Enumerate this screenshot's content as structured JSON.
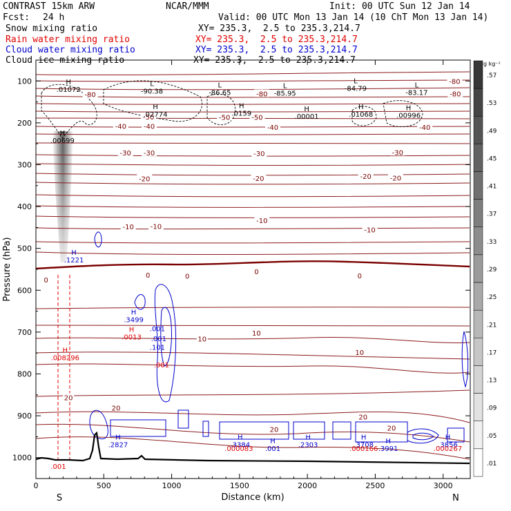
{
  "header": {
    "model": "CONTRAST 15km ARW",
    "org": "NCAR/MMM",
    "init": "Init: 00 UTC Sun 12 Jan 14",
    "fcst_label": "Fcst:",
    "fcst_value": "24 h",
    "valid": "Valid: 00 UTC Mon 13 Jan 14 (10 ChT Mon 13 Jan 14)"
  },
  "fields": [
    {
      "name": "Snow mixing ratio",
      "xy": "XY= 235.3,  2.5 to 235.3,214.7",
      "color": "#000000"
    },
    {
      "name": "Rain water mixing ratio",
      "xy": "XY= 235.3,  2.5 to 235.3,214.7",
      "color": "#e00000"
    },
    {
      "name": "Cloud water mixing ratio",
      "xy": "XY= 235.3,  2.5 to 235.3,214.7",
      "color": "#0000cc"
    },
    {
      "name": "Cloud ice mixing ratio",
      "xy": "XY= 235.3,  2.5 to 235.3,214.7",
      "color": "#000000"
    }
  ],
  "chart_data": {
    "type": "cross-section",
    "xlabel": "Distance (km)",
    "ylabel": "Pressure (hPa)",
    "xlim": [
      0,
      3200
    ],
    "ylim": [
      1050,
      50
    ],
    "x_ticks": [
      "0",
      "500",
      "1000",
      "1500",
      "2000",
      "2500",
      "3000"
    ],
    "x_tick_values": [
      0,
      500,
      1000,
      1500,
      2000,
      2500,
      3000
    ],
    "y_ticks": [
      "100",
      "200",
      "300",
      "400",
      "500",
      "600",
      "700",
      "800",
      "900",
      "1000"
    ],
    "y_tick_values": [
      100,
      200,
      300,
      400,
      500,
      600,
      700,
      800,
      900,
      1000
    ],
    "endpoints": {
      "left": "S",
      "right": "N"
    },
    "colorbar": {
      "unit": "g kg⁻¹",
      "labels": [
        ".57",
        ".53",
        ".49",
        ".45",
        ".41",
        ".37",
        ".33",
        ".29",
        ".25",
        ".21",
        ".17",
        ".13",
        ".09",
        ".05",
        ".01"
      ],
      "values": [
        0.57,
        0.53,
        0.49,
        0.45,
        0.41,
        0.37,
        0.33,
        0.29,
        0.25,
        0.21,
        0.17,
        0.13,
        0.09,
        0.05,
        0.01
      ]
    },
    "temperature_labels": [
      {
        "text": "-80",
        "x": 400,
        "p": 132
      },
      {
        "text": "-80",
        "x": 1665,
        "p": 130
      },
      {
        "text": "-80",
        "x": 3085,
        "p": 100
      },
      {
        "text": "-80",
        "x": 3090,
        "p": 130
      },
      {
        "text": "-50",
        "x": 830,
        "p": 185
      },
      {
        "text": "-50",
        "x": 1390,
        "p": 186
      },
      {
        "text": "-50",
        "x": 1630,
        "p": 186
      },
      {
        "text": "-40",
        "x": 625,
        "p": 208
      },
      {
        "text": "-40",
        "x": 835,
        "p": 208
      },
      {
        "text": "-40",
        "x": 1745,
        "p": 210
      },
      {
        "text": "-40",
        "x": 2865,
        "p": 210
      },
      {
        "text": "-30",
        "x": 660,
        "p": 271
      },
      {
        "text": "-30",
        "x": 835,
        "p": 271
      },
      {
        "text": "-30",
        "x": 1645,
        "p": 273
      },
      {
        "text": "-30",
        "x": 2665,
        "p": 270
      },
      {
        "text": "-20",
        "x": 800,
        "p": 333
      },
      {
        "text": "-20",
        "x": 1640,
        "p": 332
      },
      {
        "text": "-20",
        "x": 2430,
        "p": 327
      },
      {
        "text": "-20",
        "x": 2650,
        "p": 331
      },
      {
        "text": "-10",
        "x": 680,
        "p": 448
      },
      {
        "text": "-10",
        "x": 885,
        "p": 447
      },
      {
        "text": "-10",
        "x": 1665,
        "p": 433
      },
      {
        "text": "-10",
        "x": 2460,
        "p": 455
      },
      {
        "text": "0",
        "x": 75,
        "p": 575
      },
      {
        "text": "0",
        "x": 825,
        "p": 563
      },
      {
        "text": "0",
        "x": 1115,
        "p": 566
      },
      {
        "text": "0",
        "x": 1625,
        "p": 555
      },
      {
        "text": "0",
        "x": 2385,
        "p": 565
      },
      {
        "text": "10",
        "x": 1225,
        "p": 716
      },
      {
        "text": "10",
        "x": 1625,
        "p": 702
      },
      {
        "text": "10",
        "x": 2385,
        "p": 748
      },
      {
        "text": "20",
        "x": 240,
        "p": 856
      },
      {
        "text": "20",
        "x": 590,
        "p": 881
      },
      {
        "text": "20",
        "x": 1755,
        "p": 932
      },
      {
        "text": "20",
        "x": 2410,
        "p": 902
      },
      {
        "text": "20",
        "x": 2620,
        "p": 929
      }
    ],
    "extrema": [
      {
        "kind": "H",
        "value": ".01072",
        "x": 240,
        "p": 108,
        "color": "#000000"
      },
      {
        "kind": "L",
        "value": "-90.38",
        "x": 855,
        "p": 112,
        "color": "#000000"
      },
      {
        "kind": "L",
        "value": "-86.65",
        "x": 1355,
        "p": 115,
        "color": "#000000"
      },
      {
        "kind": "L",
        "value": "-85.95",
        "x": 1835,
        "p": 117,
        "color": "#000000"
      },
      {
        "kind": "L",
        "value": "-84.79",
        "x": 2355,
        "p": 105,
        "color": "#000000"
      },
      {
        "kind": "L",
        "value": "-83.17",
        "x": 2805,
        "p": 115,
        "color": "#000000"
      },
      {
        "kind": "H",
        "value": ".02774",
        "x": 880,
        "p": 167,
        "color": "#000000"
      },
      {
        "kind": "H",
        "value": ".0159",
        "x": 1515,
        "p": 165,
        "color": "#000000"
      },
      {
        "kind": "H",
        "value": ".00001",
        "x": 1995,
        "p": 172,
        "color": "#000000"
      },
      {
        "kind": "H",
        "value": ".01068",
        "x": 2395,
        "p": 167,
        "color": "#000000"
      },
      {
        "kind": "H",
        "value": ".00996",
        "x": 2745,
        "p": 170,
        "color": "#000000"
      },
      {
        "kind": "H",
        "value": ".00699",
        "x": 195,
        "p": 230,
        "color": "#000000"
      },
      {
        "kind": "H",
        "value": ".1221",
        "x": 280,
        "p": 515,
        "color": "#0000cc"
      },
      {
        "kind": "H",
        "value": ".3499",
        "x": 720,
        "p": 658,
        "color": "#0000cc"
      },
      {
        "kind": "H",
        "value": ".0013",
        "x": 705,
        "p": 699,
        "color": "#e00000"
      },
      {
        "kind": "H",
        "value": ".008296",
        "x": 215,
        "p": 749,
        "color": "#e00000"
      },
      {
        "kind": "H",
        "value": ".2827",
        "x": 605,
        "p": 957,
        "color": "#0000cc"
      },
      {
        "kind": "H",
        "value": ".3384",
        "x": 1505,
        "p": 957,
        "color": "#0000cc"
      },
      {
        "kind": "H",
        "value": ".001",
        "x": 1745,
        "p": 966,
        "color": "#0000cc"
      },
      {
        "kind": "H",
        "value": ".2303",
        "x": 2005,
        "p": 957,
        "color": "#0000cc"
      },
      {
        "kind": "H",
        "value": ".3708",
        "x": 2415,
        "p": 957,
        "color": "#0000cc"
      },
      {
        "kind": "H",
        "value": ".3991",
        "x": 2595,
        "p": 966,
        "color": "#0000cc"
      },
      {
        "kind": "H",
        "value": ".3856",
        "x": 3035,
        "p": 957,
        "color": "#0000cc"
      }
    ],
    "minor_labels": [
      {
        "text": ".001",
        "x": 165,
        "p": 1027,
        "color": "#e00000"
      },
      {
        "text": ".000083",
        "x": 1495,
        "p": 984,
        "color": "#e00000"
      },
      {
        "text": ".000166",
        "x": 2415,
        "p": 984,
        "color": "#e00000"
      },
      {
        "text": ".000267",
        "x": 3035,
        "p": 984,
        "color": "#e00000"
      },
      {
        "text": ".001",
        "x": 905,
        "p": 722,
        "color": "#0000cc"
      },
      {
        "text": ".101",
        "x": 895,
        "p": 742,
        "color": "#0000cc"
      },
      {
        "text": ".001",
        "x": 925,
        "p": 784,
        "color": "#e00000"
      },
      {
        "text": ".001",
        "x": 895,
        "p": 698,
        "color": "#0000cc"
      }
    ]
  }
}
